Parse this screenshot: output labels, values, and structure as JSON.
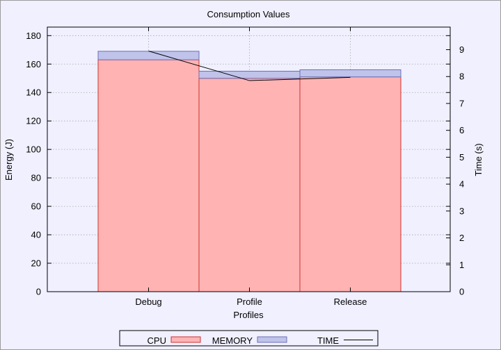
{
  "chart_data": {
    "type": "bar",
    "title": "Consumption Values",
    "xlabel": "Profiles",
    "ylabel": "Energy (J)",
    "y2label": "Time (s)",
    "categories": [
      "Debug",
      "Profile",
      "Release"
    ],
    "stacked": true,
    "series": [
      {
        "name": "CPU",
        "kind": "bar",
        "axis": "y",
        "values": [
          163,
          150,
          151
        ],
        "color": "#ffb3b3",
        "stroke": "#cc3333"
      },
      {
        "name": "MEMORY",
        "kind": "bar",
        "axis": "y",
        "values": [
          6,
          5,
          5
        ],
        "color": "#c0c3ea",
        "stroke": "#6b6fb5"
      },
      {
        "name": "TIME",
        "kind": "line",
        "axis": "y2",
        "values": [
          8.95,
          7.85,
          7.97
        ],
        "color": "#000000"
      }
    ],
    "ylim": [
      0,
      186
    ],
    "y2lim": [
      0,
      9.84
    ],
    "yticks": [
      0,
      20,
      40,
      60,
      80,
      100,
      120,
      140,
      160,
      180
    ],
    "y2ticks": [
      0,
      1,
      2,
      3,
      4,
      5,
      6,
      7,
      8,
      9
    ],
    "grid": true,
    "legend": "bottom"
  }
}
